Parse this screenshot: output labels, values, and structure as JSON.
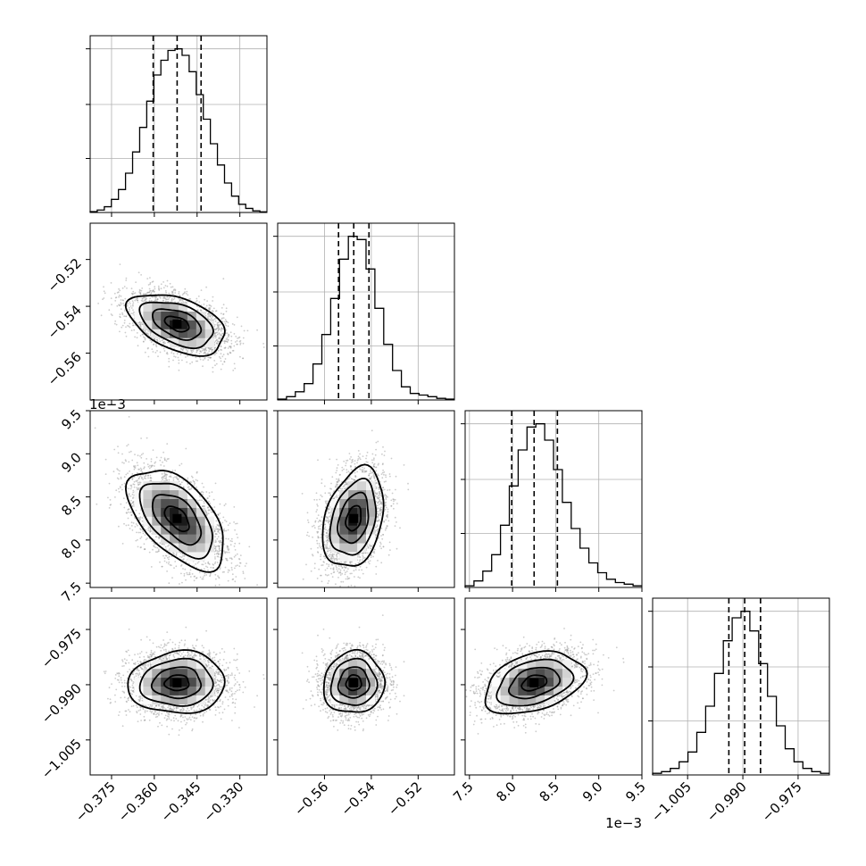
{
  "chart_data": {
    "type": "corner",
    "grid": true,
    "quantiles": [
      0.16,
      0.5,
      0.84
    ],
    "params": [
      {
        "range": [
          -0.3825,
          -0.3205
        ],
        "ticks": [
          -0.375,
          -0.36,
          -0.345,
          -0.33
        ],
        "tick_labels": [
          "−0.375",
          "−0.360",
          "−0.345",
          "−0.330"
        ],
        "offset": "",
        "median": -0.352,
        "sigma": 0.0085,
        "corr_index": 0,
        "quantile_values": [
          -0.3604,
          -0.352,
          -0.3436
        ],
        "hist": [
          0.005,
          0.015,
          0.035,
          0.08,
          0.14,
          0.24,
          0.37,
          0.52,
          0.68,
          0.84,
          0.93,
          0.99,
          1.0,
          0.96,
          0.86,
          0.72,
          0.57,
          0.42,
          0.29,
          0.18,
          0.1,
          0.05,
          0.025,
          0.01,
          0.004
        ]
      },
      {
        "range": [
          -0.58,
          -0.5045
        ],
        "ticks": [
          -0.56,
          -0.54,
          -0.52
        ],
        "tick_labels": [
          "−0.56",
          "−0.54",
          "−0.52"
        ],
        "offset": "",
        "median": -0.5475,
        "sigma": 0.0065,
        "corr_index": 1,
        "quantile_values": [
          -0.554,
          -0.5475,
          -0.541
        ],
        "hist": [
          0.005,
          0.02,
          0.05,
          0.1,
          0.22,
          0.4,
          0.62,
          0.86,
          1.0,
          0.98,
          0.8,
          0.56,
          0.34,
          0.18,
          0.08,
          0.04,
          0.03,
          0.02,
          0.01,
          0.005
        ]
      },
      {
        "range": [
          7.45,
          9.5
        ],
        "ticks": [
          7.5,
          8.0,
          8.5,
          9.0,
          9.5
        ],
        "tick_labels": [
          "7.5",
          "8.0",
          "8.5",
          "9.0",
          "9.5"
        ],
        "offset": "1e−3",
        "median": 8.25,
        "sigma": 0.29,
        "corr_index": 2,
        "quantile_values": [
          7.99,
          8.25,
          8.52
        ],
        "hist": [
          0.01,
          0.04,
          0.1,
          0.2,
          0.38,
          0.62,
          0.84,
          0.98,
          1.0,
          0.9,
          0.72,
          0.52,
          0.36,
          0.24,
          0.15,
          0.09,
          0.05,
          0.03,
          0.02,
          0.01
        ]
      },
      {
        "range": [
          -1.0145,
          -0.9665
        ],
        "ticks": [
          -1.005,
          -0.99,
          -0.975
        ],
        "tick_labels": [
          "−1.005",
          "−0.990",
          "−0.975"
        ],
        "offset": "",
        "median": -0.9895,
        "sigma": 0.0042,
        "corr_index": 3,
        "quantile_values": [
          -0.9938,
          -0.9895,
          -0.9852
        ],
        "hist": [
          0.01,
          0.02,
          0.04,
          0.08,
          0.14,
          0.26,
          0.42,
          0.62,
          0.82,
          0.96,
          1.0,
          0.88,
          0.68,
          0.48,
          0.3,
          0.16,
          0.08,
          0.04,
          0.02,
          0.01
        ]
      }
    ],
    "correlations": [
      [
        1.0,
        -0.45,
        -0.55,
        0.05
      ],
      [
        -0.45,
        1.0,
        0.3,
        0.05
      ],
      [
        -0.55,
        0.3,
        1.0,
        0.35
      ],
      [
        0.05,
        0.05,
        0.35,
        1.0
      ]
    ],
    "contour_levels": [
      0.5,
      1.0,
      1.5,
      2.0
    ]
  }
}
